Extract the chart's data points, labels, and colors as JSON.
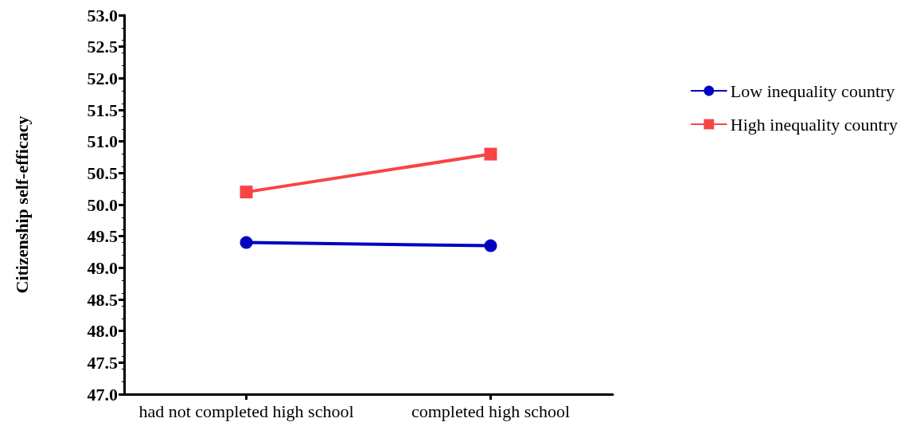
{
  "chart_data": {
    "type": "line",
    "ylabel": "Citizenship self-efficacy",
    "categories": [
      "had not completed high school",
      "completed high school"
    ],
    "series": [
      {
        "name": "Low inequality country",
        "color": "#0000c0",
        "marker": "circle",
        "values": [
          49.4,
          49.35
        ]
      },
      {
        "name": "High inequality country",
        "color": "#f84444",
        "marker": "square",
        "values": [
          50.2,
          50.8
        ]
      }
    ],
    "ylim": [
      47,
      53
    ],
    "yticks": [
      {
        "value": 47,
        "label": "47.0"
      },
      {
        "value": 47.5,
        "label": "47.5"
      },
      {
        "value": 48,
        "label": "48.0"
      },
      {
        "value": 48.5,
        "label": "48.5"
      },
      {
        "value": 49,
        "label": "49.0"
      },
      {
        "value": 49.5,
        "label": "49.5"
      },
      {
        "value": 50,
        "label": "50.0"
      },
      {
        "value": 50.5,
        "label": "50.5"
      },
      {
        "value": 51,
        "label": "51.0"
      },
      {
        "value": 51.5,
        "label": "51.5"
      },
      {
        "value": 52,
        "label": "52.0"
      },
      {
        "value": 52.5,
        "label": "52.5"
      },
      {
        "value": 53,
        "label": "53.0"
      }
    ],
    "grid": false,
    "legend": "top right",
    "line_style": "solid"
  }
}
